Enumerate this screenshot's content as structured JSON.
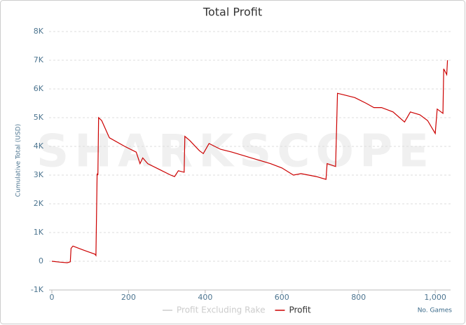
{
  "chart_data": {
    "type": "line",
    "title": "Total Profit",
    "watermark": "SHARKSCOPE",
    "ylabel": "Cumulative Total (USD)",
    "xlabel": "No. Games",
    "x": [
      0,
      20,
      40,
      48,
      50,
      55,
      80,
      112,
      115,
      118,
      120,
      122,
      130,
      150,
      190,
      220,
      230,
      237,
      250,
      280,
      310,
      320,
      330,
      345,
      347,
      360,
      385,
      395,
      410,
      440,
      470,
      520,
      570,
      600,
      630,
      650,
      690,
      715,
      718,
      740,
      745,
      760,
      790,
      820,
      840,
      860,
      890,
      920,
      935,
      960,
      980,
      1000,
      1005,
      1020,
      1022,
      1030,
      1032
    ],
    "series": [
      {
        "name": "Profit Excluding Rake",
        "color": "#cccccc",
        "hidden": true,
        "values": [
          null,
          null,
          null,
          null,
          null,
          null,
          null,
          null,
          null,
          null,
          null,
          null,
          null,
          null,
          null,
          null,
          null,
          null,
          null,
          null,
          null,
          null,
          null,
          null,
          null,
          null,
          null,
          null,
          null,
          null,
          null,
          null,
          null,
          null,
          null,
          null,
          null,
          null,
          null,
          null,
          null,
          null,
          null,
          null,
          null,
          null,
          null,
          null,
          null,
          null,
          null,
          null,
          null,
          null,
          null,
          null,
          null
        ]
      },
      {
        "name": "Profit",
        "color": "#cc0000",
        "values": [
          0,
          -30,
          -50,
          -20,
          450,
          530,
          400,
          250,
          200,
          3050,
          3000,
          5000,
          4900,
          4300,
          4000,
          3800,
          3400,
          3600,
          3400,
          3200,
          3000,
          2950,
          3150,
          3100,
          4350,
          4200,
          3850,
          3750,
          4100,
          3900,
          3800,
          3600,
          3400,
          3250,
          3000,
          3050,
          2950,
          2850,
          3400,
          3300,
          5850,
          5800,
          5700,
          5500,
          5350,
          5350,
          5200,
          4850,
          5200,
          5100,
          4900,
          4450,
          5300,
          5150,
          6700,
          6500,
          7000
        ]
      }
    ],
    "xlim": [
      0,
      1040
    ],
    "xticks": [
      0,
      200,
      400,
      600,
      800,
      {
        "value": 1000,
        "label": "1,000"
      }
    ],
    "ylim": [
      -1000,
      8000
    ],
    "yticks": [
      {
        "value": -1000,
        "label": "-1K"
      },
      0,
      {
        "value": 1000,
        "label": "1K"
      },
      {
        "value": 2000,
        "label": "2K"
      },
      {
        "value": 3000,
        "label": "3K"
      },
      {
        "value": 4000,
        "label": "4K"
      },
      {
        "value": 5000,
        "label": "5K"
      },
      {
        "value": 6000,
        "label": "6K"
      },
      {
        "value": 7000,
        "label": "7K"
      },
      {
        "value": 8000,
        "label": "8K"
      }
    ],
    "grid": true
  }
}
